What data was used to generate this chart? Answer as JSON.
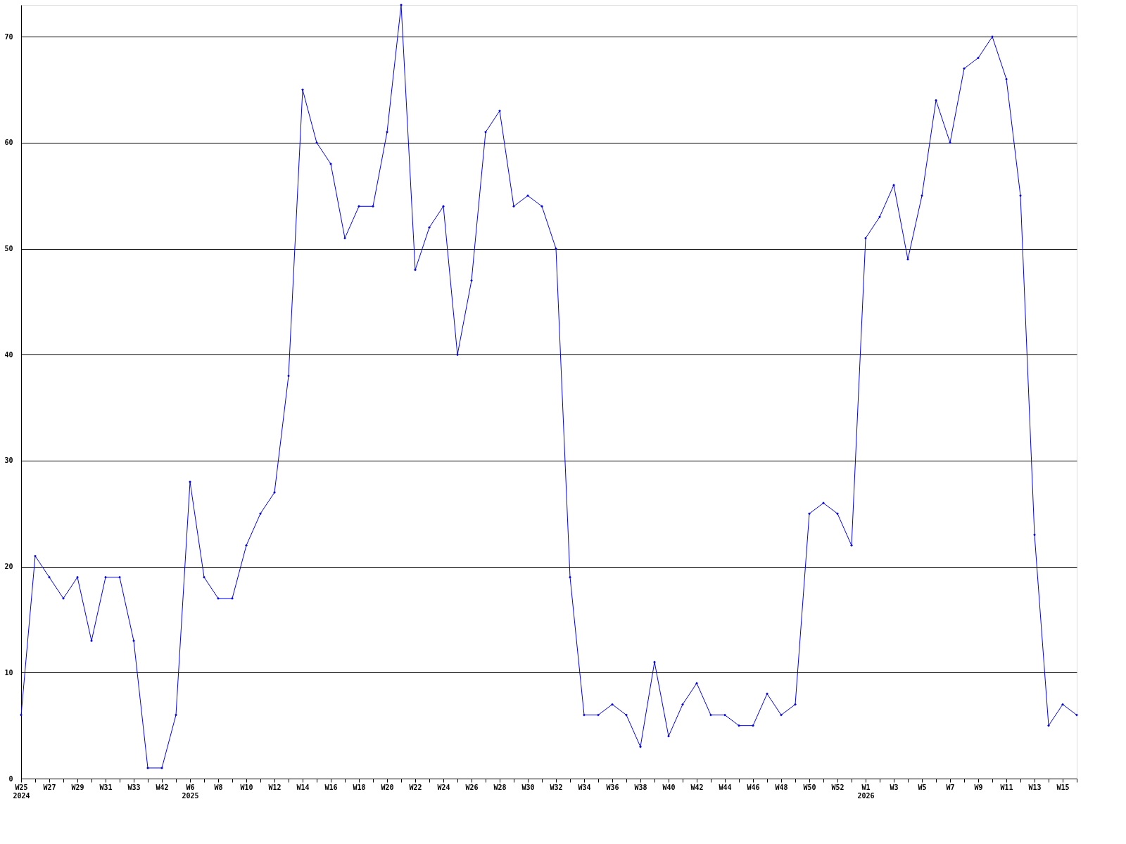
{
  "chart_data": {
    "type": "line",
    "categories": [
      "W25\n2024",
      null,
      "W27",
      null,
      "W29",
      null,
      "W31",
      null,
      "W33",
      null,
      "W42",
      null,
      "W6\n2025",
      null,
      "W8",
      null,
      "W10",
      null,
      "W12",
      null,
      "W14",
      null,
      "W16",
      null,
      "W18",
      null,
      "W20",
      null,
      "W22",
      null,
      "W24",
      null,
      "W26",
      null,
      "W28",
      null,
      "W30",
      null,
      "W32",
      null,
      "W34",
      null,
      "W36",
      null,
      "W38",
      null,
      "W40",
      null,
      "W42",
      null,
      "W44",
      null,
      "W46",
      null,
      "W48",
      null,
      "W50",
      null,
      "W52",
      null,
      "W1\n2026",
      null,
      "W3",
      null,
      "W5",
      null,
      "W7",
      null,
      "W9",
      null,
      "W11",
      null,
      "W13",
      null,
      "W15",
      null
    ],
    "series": [
      {
        "color": "#0000ff",
        "values": [
          6,
          21,
          19,
          17,
          19,
          13,
          19,
          19,
          13,
          1,
          1,
          6,
          28,
          19,
          17,
          17,
          22,
          25,
          27,
          38,
          65,
          60,
          58,
          51,
          54,
          54,
          61,
          73,
          48,
          52,
          54,
          40,
          47,
          61,
          63,
          54,
          55,
          54,
          50,
          19,
          6,
          6,
          7,
          6,
          3,
          11,
          4,
          7,
          9,
          6,
          6,
          5,
          5,
          8,
          6,
          7,
          25,
          26,
          25,
          22,
          51,
          53,
          56,
          49,
          55,
          64,
          60,
          67,
          68,
          70,
          66,
          55,
          23,
          5,
          7,
          6
        ]
      }
    ],
    "ylim": [
      0,
      73
    ],
    "yticks": [
      0,
      10,
      20,
      30,
      40,
      50,
      60,
      70
    ],
    "grid": "y",
    "legend": false,
    "marker": "diamond",
    "line_style": "solid"
  }
}
